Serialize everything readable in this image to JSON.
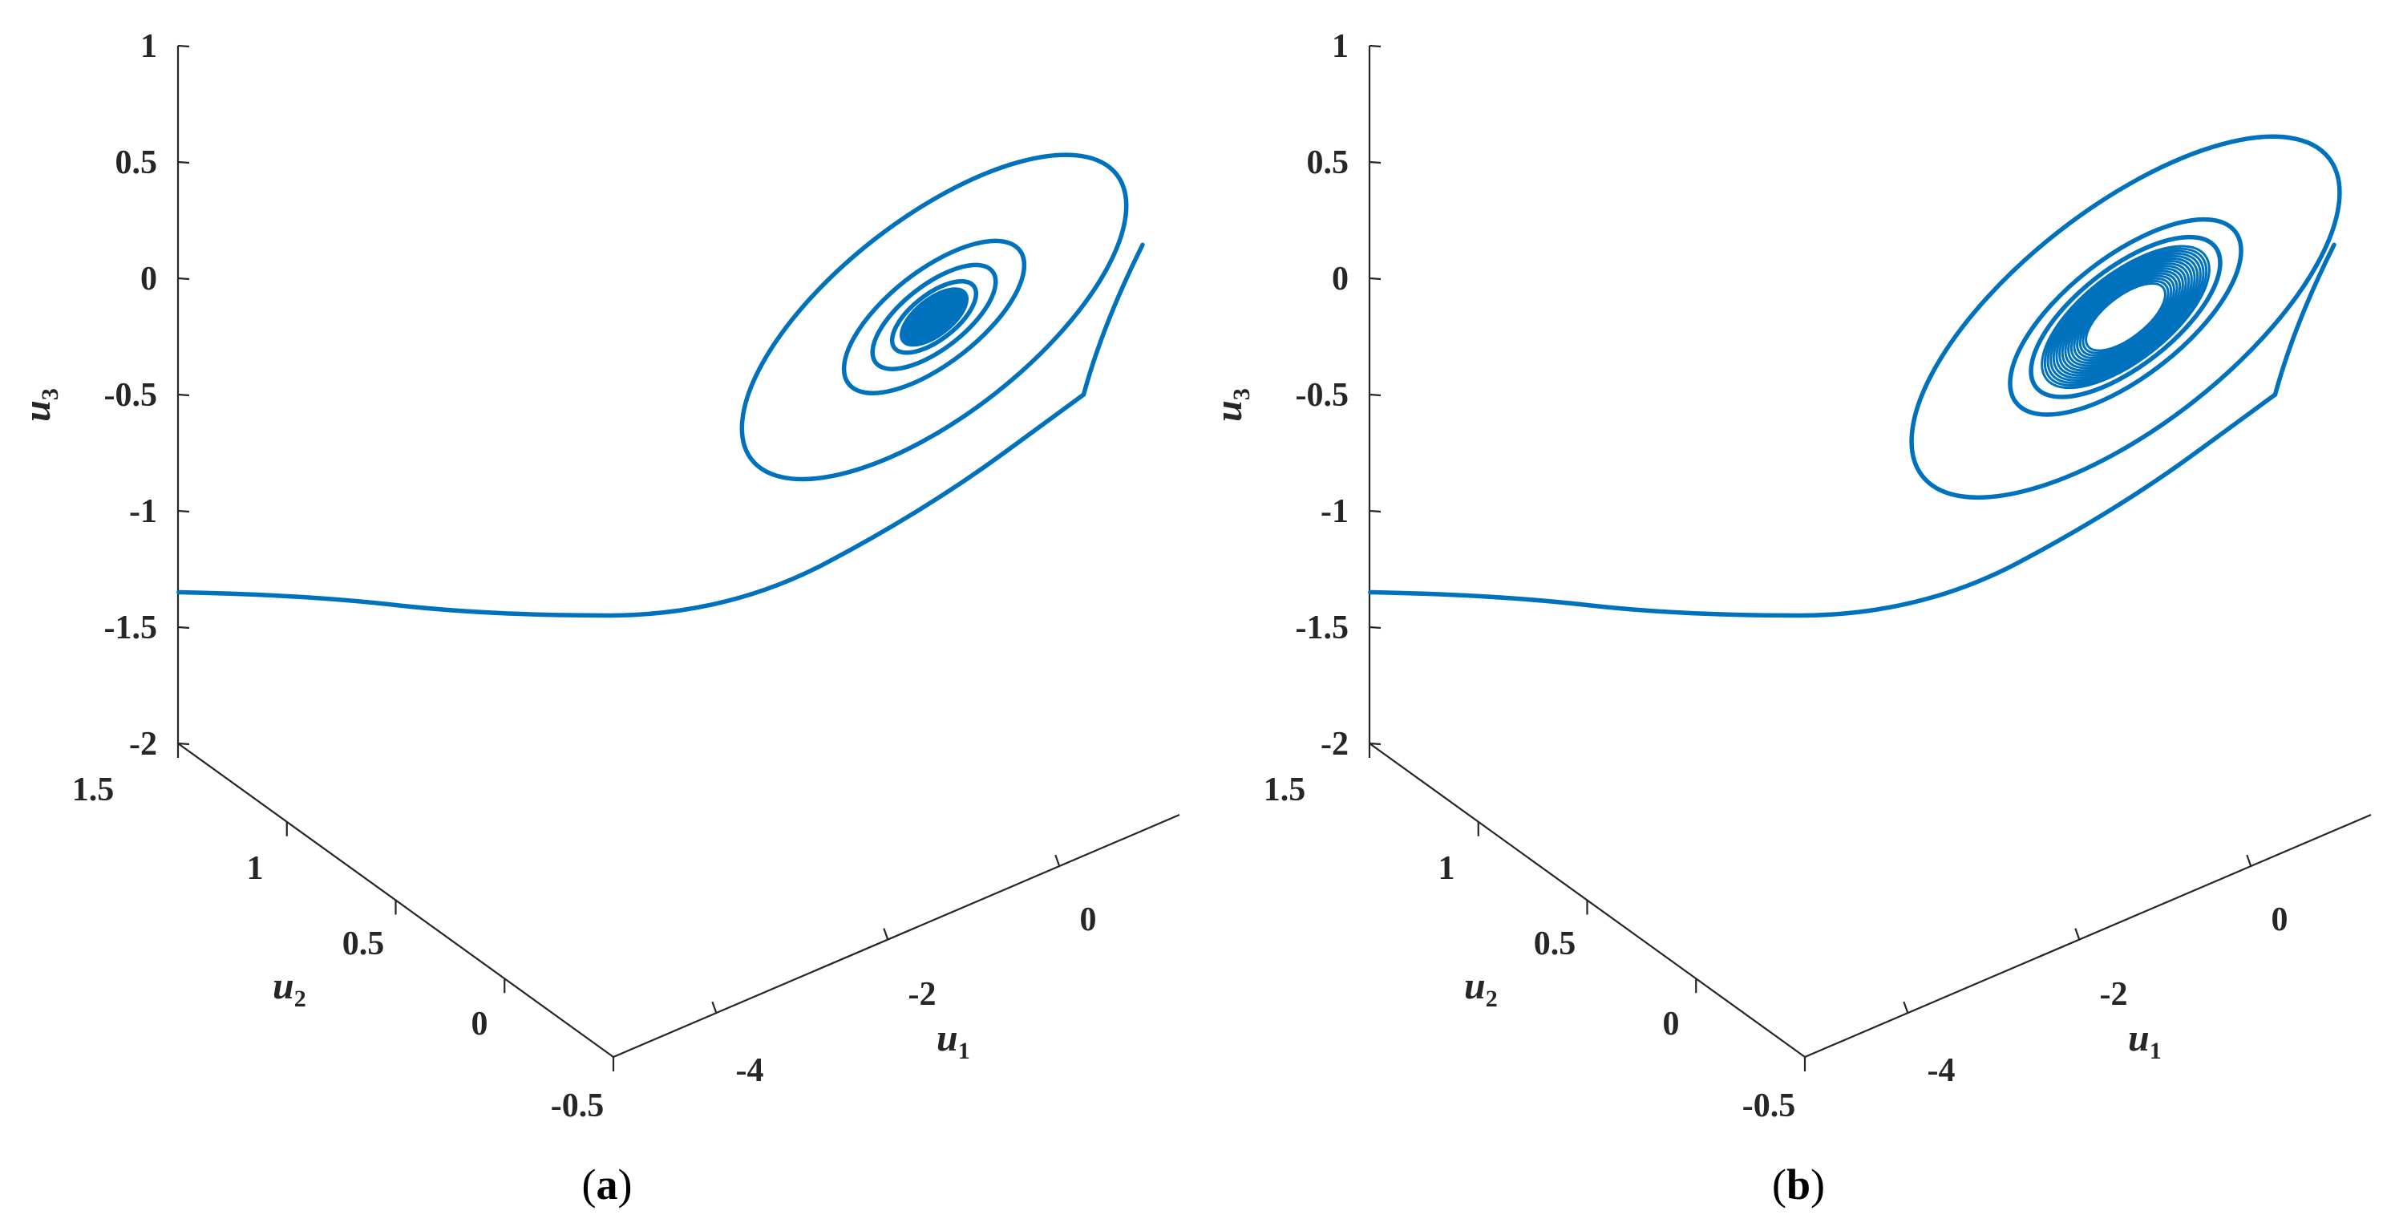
{
  "chart_data": [
    {
      "type": "line3d",
      "panel": "(a)",
      "caption_parts": {
        "open": "(",
        "letter": "a",
        "close": ")"
      },
      "color": "#0072BD",
      "axes": {
        "u1": {
          "label": "u",
          "sub": "1",
          "ticks": [
            {
              "v": -4,
              "t": "-4"
            },
            {
              "v": -2,
              "t": "-2"
            },
            {
              "v": 0,
              "t": "0"
            }
          ]
        },
        "u2": {
          "label": "u",
          "sub": "2",
          "ticks": [
            {
              "v": -0.5,
              "t": "-0.5"
            },
            {
              "v": 0,
              "t": "0"
            },
            {
              "v": 0.5,
              "t": "0.5"
            },
            {
              "v": 1,
              "t": "1"
            },
            {
              "v": 1.5,
              "t": "1.5"
            }
          ]
        },
        "u3": {
          "label": "u",
          "sub": "3",
          "ticks": [
            {
              "v": -2,
              "t": "-2"
            },
            {
              "v": -1.5,
              "t": "-1.5"
            },
            {
              "v": -1,
              "t": "-1"
            },
            {
              "v": -0.5,
              "t": "-0.5"
            },
            {
              "v": 0,
              "t": "0"
            },
            {
              "v": 0.5,
              "t": "0.5"
            },
            {
              "v": 1,
              "t": "1"
            }
          ]
        }
      },
      "trajectory": {
        "path_u3": [
          [
            -1.37,
            -1.35
          ],
          [
            -0.9,
            -1.36
          ],
          [
            -0.2,
            -1.45
          ],
          [
            0.7,
            -1.45
          ],
          [
            1.45,
            -1.0
          ],
          [
            2.05,
            -0.5
          ]
        ],
        "spiral_center_u3": -0.27,
        "attractor": "stable focus",
        "rings": [
          {
            "width": 1.75,
            "height": 0.74,
            "tilt_deg": -38
          },
          {
            "width": 0.82,
            "height": 0.35,
            "tilt_deg": -38
          },
          {
            "width": 0.56,
            "height": 0.24,
            "tilt_deg": -38
          },
          {
            "width": 0.38,
            "height": 0.17,
            "tilt_deg": -38
          }
        ],
        "dense_core": {
          "max_width": 0.3,
          "max_height": 0.14,
          "min_width": 0.02,
          "turns": 22
        }
      }
    },
    {
      "type": "line3d",
      "panel": "(b)",
      "caption_parts": {
        "open": "(",
        "letter": "b",
        "close": ")"
      },
      "color": "#0072BD",
      "axes": {
        "u1": {
          "label": "u",
          "sub": "1",
          "ticks": [
            {
              "v": -4,
              "t": "-4"
            },
            {
              "v": -2,
              "t": "-2"
            },
            {
              "v": 0,
              "t": "0"
            }
          ]
        },
        "u2": {
          "label": "u",
          "sub": "2",
          "ticks": [
            {
              "v": -0.5,
              "t": "-0.5"
            },
            {
              "v": 0,
              "t": "0"
            },
            {
              "v": 0.5,
              "t": "0.5"
            },
            {
              "v": 1,
              "t": "1"
            },
            {
              "v": 1.5,
              "t": "1.5"
            }
          ]
        },
        "u3": {
          "label": "u",
          "sub": "3",
          "ticks": [
            {
              "v": -2,
              "t": "-2"
            },
            {
              "v": -1.5,
              "t": "-1.5"
            },
            {
              "v": -1,
              "t": "-1"
            },
            {
              "v": -0.5,
              "t": "-0.5"
            },
            {
              "v": 0,
              "t": "0"
            },
            {
              "v": 0.5,
              "t": "0.5"
            },
            {
              "v": 1,
              "t": "1"
            }
          ]
        }
      },
      "trajectory": {
        "path_u3": [
          [
            -1.37,
            -1.35
          ],
          [
            -0.9,
            -1.36
          ],
          [
            -0.2,
            -1.45
          ],
          [
            0.7,
            -1.45
          ],
          [
            1.45,
            -1.0
          ],
          [
            2.05,
            -0.5
          ]
        ],
        "spiral_center_u3": -0.27,
        "attractor": "limit cycle",
        "rings": [
          {
            "width": 1.95,
            "height": 0.82,
            "tilt_deg": -38
          },
          {
            "width": 1.05,
            "height": 0.45,
            "tilt_deg": -38
          },
          {
            "width": 0.86,
            "height": 0.37,
            "tilt_deg": -38
          }
        ],
        "dense_core": {
          "max_width": 0.76,
          "max_height": 0.33,
          "min_width": 0.36,
          "turns": 16
        }
      }
    }
  ]
}
